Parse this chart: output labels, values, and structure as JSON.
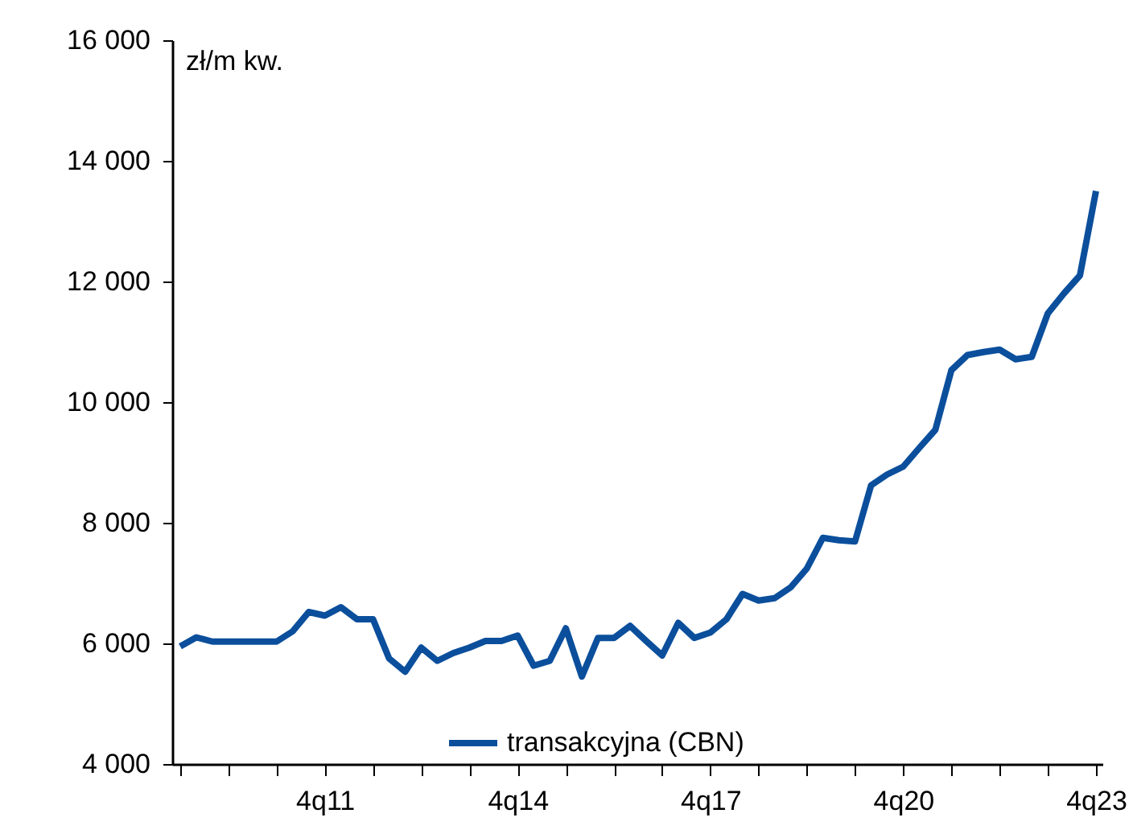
{
  "chart_data": {
    "type": "line",
    "ylabel": "zł/m kw.",
    "categories": [
      null,
      null,
      null,
      null,
      null,
      null,
      null,
      null,
      null,
      "4q11",
      null,
      null,
      null,
      null,
      null,
      null,
      null,
      null,
      null,
      null,
      null,
      "4q14",
      null,
      null,
      null,
      null,
      null,
      null,
      null,
      null,
      null,
      null,
      null,
      "4q17",
      null,
      null,
      null,
      null,
      null,
      null,
      null,
      null,
      null,
      null,
      null,
      "4q20",
      null,
      null,
      null,
      null,
      null,
      null,
      null,
      null,
      null,
      null,
      null,
      "4q23"
    ],
    "series": [
      {
        "name": "transakcyjna (CBN)",
        "color": "#0b4f9c",
        "values": [
          5950,
          6100,
          6030,
          6030,
          6030,
          6030,
          6030,
          6200,
          6520,
          6460,
          6600,
          6400,
          6400,
          5750,
          5530,
          5930,
          5710,
          5840,
          5930,
          6040,
          6040,
          6130,
          5630,
          5710,
          6250,
          5450,
          6090,
          6090,
          6290,
          6040,
          5800,
          6340,
          6090,
          6180,
          6400,
          6820,
          6710,
          6750,
          6930,
          7240,
          7750,
          7710,
          7690,
          8620,
          8800,
          8930,
          9240,
          9540,
          10530,
          10780,
          10830,
          10870,
          10710,
          10750,
          11470,
          11800,
          12100,
          13500
        ]
      }
    ],
    "ylim": [
      4000,
      16000
    ],
    "yticks": [
      {
        "value": 4000,
        "label": "4 000"
      },
      {
        "value": 6000,
        "label": "6 000"
      },
      {
        "value": 8000,
        "label": "8 000"
      },
      {
        "value": 10000,
        "label": "10 000"
      },
      {
        "value": 12000,
        "label": "12 000"
      },
      {
        "value": 14000,
        "label": "14 000"
      },
      {
        "value": 16000,
        "label": "16 000"
      }
    ],
    "grid": false,
    "legend": "bottom",
    "line_style": "solid",
    "marker": "none"
  }
}
